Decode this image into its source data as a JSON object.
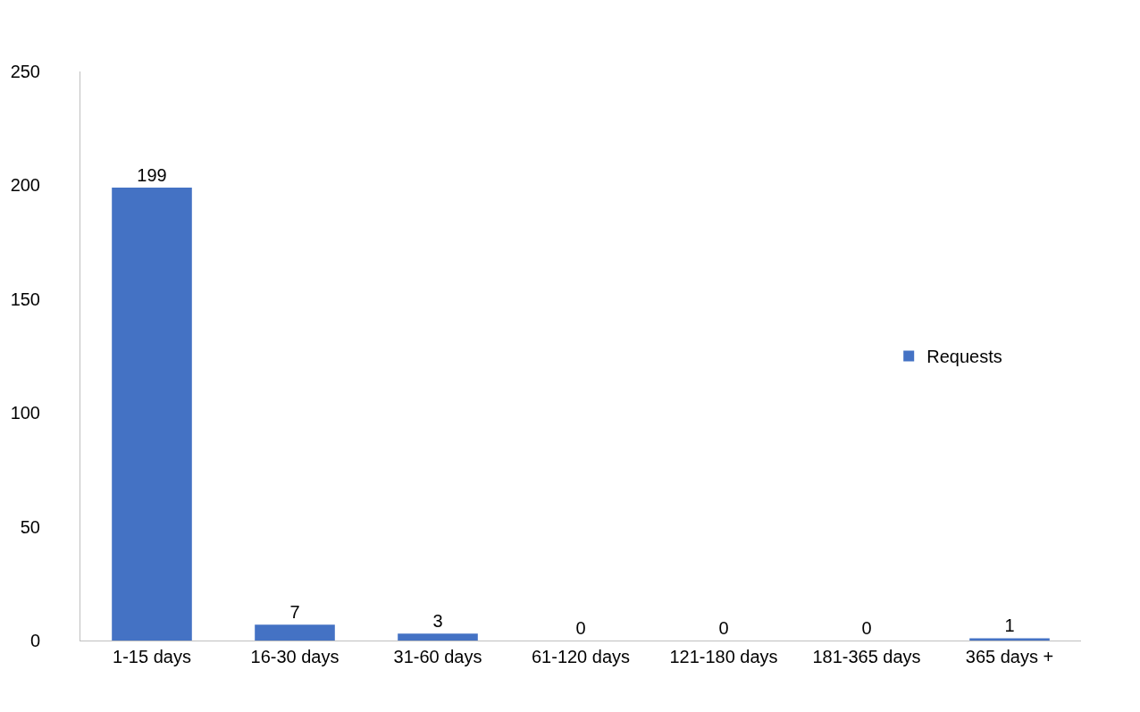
{
  "chart_data": {
    "type": "bar",
    "categories": [
      "1-15 days",
      "16-30 days",
      "31-60 days",
      "61-120 days",
      "121-180 days",
      "181-365 days",
      "365 days +"
    ],
    "series": [
      {
        "name": "Requests",
        "color": "#4472c4",
        "values": [
          199,
          7,
          3,
          0,
          0,
          0,
          1
        ]
      }
    ],
    "ylim": [
      0,
      250
    ],
    "yticks": [
      0,
      50,
      100,
      150,
      200,
      250
    ],
    "grid": false,
    "legend": "right",
    "data_labels": true
  }
}
